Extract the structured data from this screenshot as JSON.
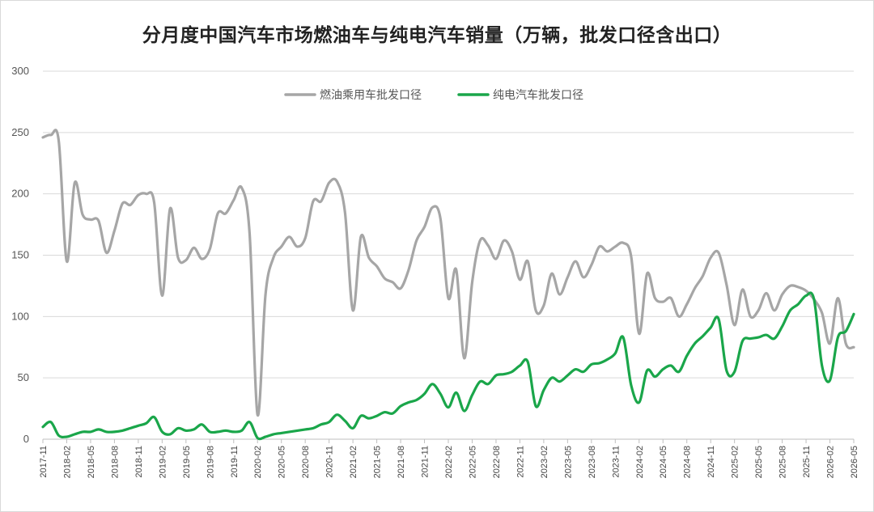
{
  "chart_data": {
    "type": "line",
    "title": "分月度中国汽车市场燃油车与纯电汽车销量（万辆，批发口径含出口）",
    "ylim": [
      0,
      300
    ],
    "yticks": [
      0,
      50,
      100,
      150,
      200,
      250,
      300
    ],
    "grid": "horizontal",
    "legend_position": "top-center",
    "x_tick_labels": [
      "2017-11",
      "2018-02",
      "2018-05",
      "2018-08",
      "2018-11",
      "2019-02",
      "2019-05",
      "2019-08",
      "2019-11",
      "2020-02",
      "2020-05",
      "2020-08",
      "2020-11",
      "2021-02",
      "2021-05",
      "2021-08",
      "2021-11",
      "2022-02",
      "2022-05",
      "2022-08",
      "2022-11",
      "2023-02",
      "2023-05",
      "2023-08",
      "2023-11",
      "2024-02",
      "2024-05",
      "2024-08",
      "2024-11",
      "2025-02",
      "2025-05",
      "2025-08",
      "2025-11",
      "2026-02",
      "2026-05"
    ],
    "x": [
      "2017-11",
      "2017-12",
      "2018-01",
      "2018-02",
      "2018-03",
      "2018-04",
      "2018-05",
      "2018-06",
      "2018-07",
      "2018-08",
      "2018-09",
      "2018-10",
      "2018-11",
      "2018-12",
      "2019-01",
      "2019-02",
      "2019-03",
      "2019-04",
      "2019-05",
      "2019-06",
      "2019-07",
      "2019-08",
      "2019-09",
      "2019-10",
      "2019-11",
      "2019-12",
      "2020-01",
      "2020-02",
      "2020-03",
      "2020-04",
      "2020-05",
      "2020-06",
      "2020-07",
      "2020-08",
      "2020-09",
      "2020-10",
      "2020-11",
      "2020-12",
      "2021-01",
      "2021-02",
      "2021-03",
      "2021-04",
      "2021-05",
      "2021-06",
      "2021-07",
      "2021-08",
      "2021-09",
      "2021-10",
      "2021-11",
      "2021-12",
      "2022-01",
      "2022-02",
      "2022-03",
      "2022-04",
      "2022-05",
      "2022-06",
      "2022-07",
      "2022-08",
      "2022-09",
      "2022-10",
      "2022-11",
      "2022-12",
      "2023-01",
      "2023-02",
      "2023-03",
      "2023-04",
      "2023-05",
      "2023-06",
      "2023-07",
      "2023-08",
      "2023-09",
      "2023-10",
      "2023-11",
      "2023-12",
      "2024-01",
      "2024-02",
      "2024-03",
      "2024-04",
      "2024-05",
      "2024-06",
      "2024-07",
      "2024-08",
      "2024-09",
      "2024-10",
      "2024-11",
      "2024-12",
      "2025-01",
      "2025-02",
      "2025-03",
      "2025-04",
      "2025-05",
      "2025-06",
      "2025-07",
      "2025-08",
      "2025-09",
      "2025-10",
      "2025-11",
      "2025-12",
      "2026-01",
      "2026-02",
      "2026-03",
      "2026-04",
      "2026-05"
    ],
    "series": [
      {
        "name": "燃油乘用车批发口径",
        "color": "#a6a6a6",
        "values": [
          246,
          248,
          243,
          145,
          209,
          183,
          179,
          178,
          152,
          170,
          192,
          191,
          199,
          200,
          193,
          117,
          188,
          148,
          146,
          156,
          147,
          155,
          184,
          184,
          195,
          205,
          168,
          20,
          118,
          148,
          157,
          165,
          157,
          164,
          194,
          194,
          209,
          210,
          185,
          105,
          165,
          148,
          141,
          131,
          128,
          123,
          138,
          162,
          173,
          189,
          180,
          115,
          138,
          66,
          128,
          162,
          158,
          147,
          162,
          153,
          130,
          145,
          105,
          109,
          135,
          118,
          132,
          145,
          132,
          142,
          157,
          153,
          157,
          160,
          149,
          86,
          135,
          115,
          112,
          115,
          100,
          110,
          123,
          133,
          148,
          152,
          126,
          93,
          122,
          100,
          105,
          119,
          105,
          118,
          125,
          124,
          121,
          114,
          103,
          78,
          115,
          78,
          75
        ]
      },
      {
        "name": "纯电汽车批发口径",
        "color": "#1aa64a",
        "values": [
          10,
          14,
          3,
          2,
          4,
          6,
          6,
          8,
          6,
          6,
          7,
          9,
          11,
          13,
          18,
          6,
          4,
          9,
          7,
          8,
          12,
          6,
          6,
          7,
          6,
          7,
          14,
          1,
          2,
          4,
          5,
          6,
          7,
          8,
          9,
          12,
          14,
          20,
          15,
          9,
          19,
          17,
          19,
          22,
          21,
          27,
          30,
          32,
          37,
          45,
          37,
          26,
          38,
          23,
          36,
          47,
          45,
          52,
          53,
          55,
          60,
          63,
          27,
          40,
          50,
          47,
          52,
          57,
          55,
          61,
          62,
          65,
          70,
          83,
          44,
          30,
          56,
          51,
          57,
          60,
          55,
          68,
          78,
          84,
          91,
          98,
          56,
          55,
          80,
          82,
          83,
          85,
          82,
          92,
          105,
          110,
          117,
          114,
          60,
          48,
          83,
          88,
          102
        ]
      }
    ]
  }
}
